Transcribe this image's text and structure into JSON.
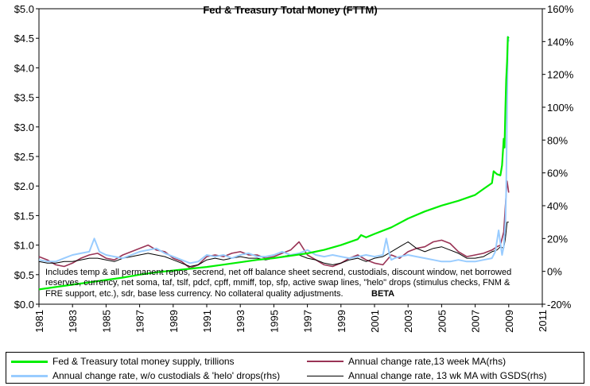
{
  "chart_data": {
    "type": "line",
    "title": "Fed & Treasury Total Money (FTTM)",
    "annotation_lines": [
      "Includes temp & all permanent repos, secrend, net off balance sheet secrend, custodials, discount window, net borrowed",
      "reserves, currency, net soma, taf, tslf, pdcf, cpff, mmiff, top, sfp, active swap lines, \"helo\" drops (stimulus checks, FNM &",
      "FRE support, etc.), sdr, base less currency.  No collateral quality adjustments."
    ],
    "annotation_badge": "BETA",
    "x_ticks": [
      "1981",
      "1983",
      "1985",
      "1987",
      "1989",
      "1991",
      "1993",
      "1995",
      "1997",
      "1999",
      "2001",
      "2003",
      "2005",
      "2007",
      "2009",
      "2011"
    ],
    "xlim": [
      1981,
      2011
    ],
    "y_left_ticks": [
      "$0.0",
      "$0.5",
      "$1.0",
      "$1.5",
      "$2.0",
      "$2.5",
      "$3.0",
      "$3.5",
      "$4.0",
      "$4.5",
      "$5.0"
    ],
    "ylim_left": [
      0,
      5
    ],
    "y_right_ticks": [
      "-20%",
      "0%",
      "20%",
      "40%",
      "60%",
      "80%",
      "100%",
      "120%",
      "140%",
      "160%"
    ],
    "ylim_right": [
      -20,
      160
    ],
    "series": [
      {
        "name": "Fed & Treasury total money supply, trillions",
        "axis": "left",
        "color": "#00ee00",
        "x": [
          1981,
          1982,
          1983,
          1984,
          1985,
          1986,
          1987,
          1988,
          1989,
          1990,
          1991,
          1992,
          1993,
          1994,
          1995,
          1996,
          1997,
          1998,
          1999,
          2000,
          2000.2,
          2000.5,
          2001,
          2002,
          2003,
          2004,
          2005,
          2006,
          2007,
          2007.5,
          2008,
          2008.1,
          2008.3,
          2008.5,
          2008.6,
          2008.7,
          2008.75,
          2008.8,
          2008.85,
          2008.9,
          2008.95,
          2009
        ],
        "values": [
          0.25,
          0.29,
          0.33,
          0.37,
          0.41,
          0.45,
          0.5,
          0.54,
          0.57,
          0.6,
          0.63,
          0.67,
          0.71,
          0.75,
          0.78,
          0.82,
          0.86,
          0.92,
          1.0,
          1.1,
          1.17,
          1.13,
          1.19,
          1.3,
          1.45,
          1.57,
          1.67,
          1.75,
          1.85,
          1.95,
          2.05,
          2.25,
          2.2,
          2.18,
          2.35,
          2.8,
          2.65,
          3.3,
          3.8,
          4.1,
          4.52,
          4.5
        ]
      },
      {
        "name": "Annual change rate,13 week MA(rhs)",
        "axis": "right",
        "color": "#993355",
        "x": [
          1981,
          1981.5,
          1982,
          1982.5,
          1983,
          1983.5,
          1984,
          1984.5,
          1985,
          1985.5,
          1986,
          1986.5,
          1987,
          1987.5,
          1988,
          1988.5,
          1989,
          1989.5,
          1990,
          1990.5,
          1991,
          1991.5,
          1992,
          1992.5,
          1993,
          1993.5,
          1994,
          1994.5,
          1995,
          1995.5,
          1996,
          1996.5,
          1997,
          1997.5,
          1998,
          1998.5,
          1999,
          1999.5,
          2000,
          2000.5,
          2001,
          2001.5,
          2002,
          2002.5,
          2003,
          2003.5,
          2004,
          2004.5,
          2005,
          2005.5,
          2006,
          2006.5,
          2007,
          2007.5,
          2008,
          2008.3,
          2008.5,
          2008.7,
          2008.8,
          2008.9,
          2009
        ],
        "values": [
          9,
          7,
          4,
          3,
          5,
          8,
          10,
          11,
          8,
          7,
          10,
          12,
          14,
          16,
          13,
          12,
          8,
          6,
          2,
          4,
          9,
          10,
          9,
          11,
          12,
          10,
          10,
          8,
          9,
          11,
          13,
          18,
          10,
          7,
          4,
          3,
          5,
          8,
          10,
          7,
          5,
          4,
          10,
          8,
          12,
          14,
          15,
          18,
          19,
          17,
          12,
          9,
          10,
          11,
          13,
          15,
          16,
          24,
          40,
          55,
          48
        ]
      },
      {
        "name": "Annual change rate, w/o custodials & 'helo' drops(rhs)",
        "axis": "right",
        "color": "#99ccff",
        "x": [
          1981,
          1981.5,
          1982,
          1982.5,
          1983,
          1983.5,
          1984,
          1984.3,
          1984.6,
          1985,
          1985.5,
          1986,
          1986.5,
          1987,
          1987.5,
          1988,
          1988.5,
          1989,
          1989.5,
          1990,
          1990.5,
          1991,
          1991.5,
          1992,
          1992.5,
          1993,
          1993.5,
          1994,
          1994.5,
          1995,
          1995.5,
          1996,
          1996.5,
          1997,
          1997.5,
          1998,
          1998.5,
          1999,
          1999.5,
          2000,
          2000.5,
          2001,
          2001.5,
          2001.7,
          2001.9,
          2002,
          2002.2,
          2002.5,
          2003,
          2003.5,
          2004,
          2004.5,
          2005,
          2005.5,
          2006,
          2006.5,
          2007,
          2007.5,
          2008,
          2008.2,
          2008.4,
          2008.6,
          2008.7,
          2008.8,
          2008.85,
          2008.9,
          2008.95,
          2009
        ],
        "values": [
          7,
          6,
          6,
          8,
          10,
          11,
          12,
          20,
          12,
          10,
          9,
          8,
          10,
          12,
          13,
          14,
          11,
          9,
          7,
          5,
          6,
          10,
          9,
          10,
          8,
          10,
          11,
          9,
          9,
          10,
          12,
          10,
          11,
          13,
          10,
          9,
          10,
          9,
          8,
          9,
          10,
          9,
          10,
          20,
          10,
          7,
          8,
          9,
          10,
          9,
          8,
          7,
          6,
          6,
          7,
          6,
          6,
          7,
          8,
          12,
          25,
          10,
          15,
          30,
          50,
          100,
          143,
          140
        ]
      },
      {
        "name": "Annual change rate, 13 wk MA with GSDS(rhs)",
        "axis": "right",
        "color": "#000000",
        "x": [
          1981,
          1981.5,
          1982,
          1982.5,
          1983,
          1983.5,
          1984,
          1984.5,
          1985,
          1985.5,
          1986,
          1986.5,
          1987,
          1987.5,
          1988,
          1988.5,
          1989,
          1989.5,
          1990,
          1990.5,
          1991,
          1991.5,
          1992,
          1992.5,
          1993,
          1993.5,
          1994,
          1994.5,
          1995,
          1995.5,
          1996,
          1996.5,
          1997,
          1997.5,
          1998,
          1998.5,
          1999,
          1999.5,
          2000,
          2000.5,
          2001,
          2001.5,
          2002,
          2002.5,
          2003,
          2003.5,
          2004,
          2004.5,
          2005,
          2005.5,
          2006,
          2006.5,
          2007,
          2007.5,
          2008,
          2008.3,
          2008.5,
          2008.7,
          2008.8,
          2008.9,
          2009
        ],
        "values": [
          6,
          5,
          5,
          6,
          6,
          7,
          8,
          8,
          7,
          6,
          8,
          9,
          10,
          11,
          10,
          9,
          7,
          5,
          3,
          4,
          7,
          8,
          7,
          8,
          9,
          8,
          8,
          7,
          8,
          9,
          10,
          10,
          8,
          7,
          5,
          4,
          5,
          7,
          8,
          6,
          8,
          9,
          12,
          15,
          18,
          14,
          12,
          14,
          15,
          13,
          11,
          8,
          8,
          9,
          12,
          13,
          15,
          14,
          20,
          30,
          30
        ]
      }
    ]
  }
}
